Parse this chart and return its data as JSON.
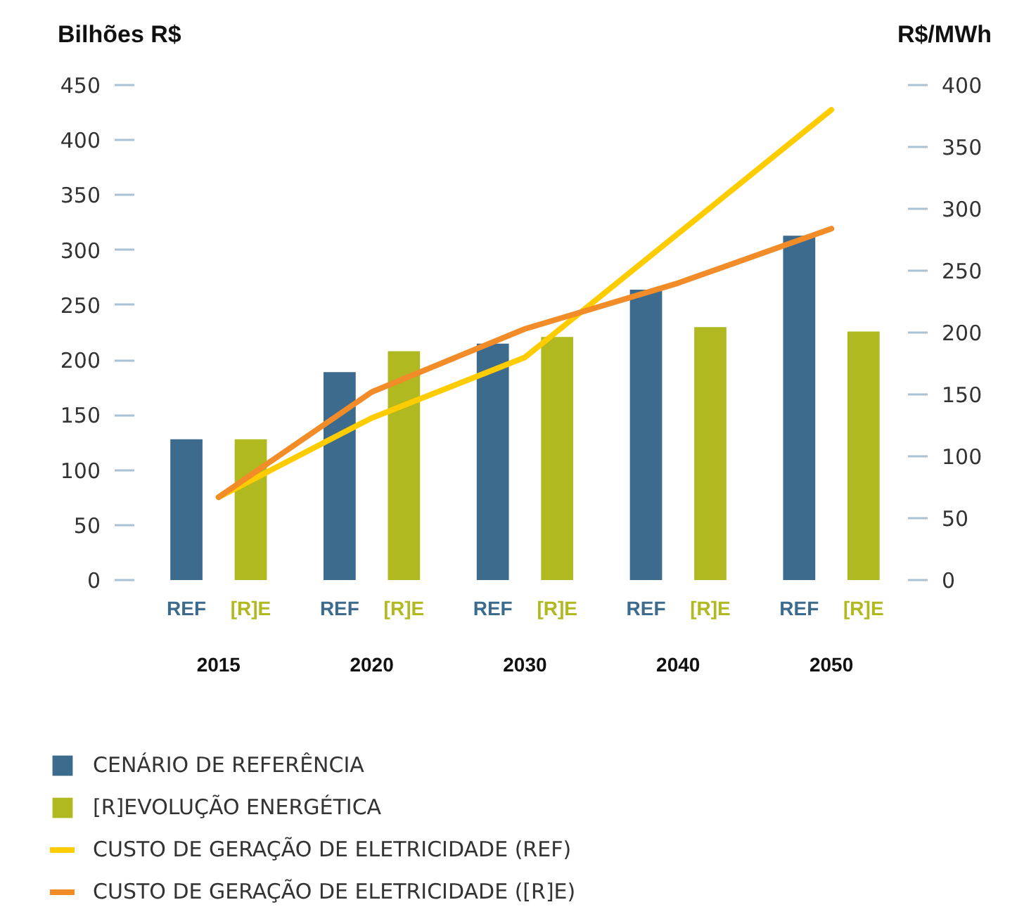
{
  "chart_data": {
    "type": "bar",
    "ylabel": "Bilhões R$",
    "y2label": "R$/MWh",
    "categories": [
      "2015",
      "2020",
      "2030",
      "2040",
      "2050"
    ],
    "series": [
      {
        "name": "CENÁRIO DE REFERÊNCIA",
        "color": "#3d6b8e",
        "values": [
          128,
          189,
          215,
          264,
          313
        ]
      },
      {
        "name": "[R]EVOLUÇÃO ENERGÉTICA",
        "color": "#b0b91f",
        "values": [
          128,
          208,
          221,
          230,
          226
        ]
      },
      {
        "name": "CUSTO DE GERAÇÃO DE ELETRICIDADE (REF)",
        "type": "line",
        "axis": "y2",
        "color": "#ffcc00",
        "values": [
          67,
          131,
          180,
          280,
          380
        ]
      },
      {
        "name": "CUSTO DE GERAÇÃO DE ELETRICIDADE ([R]E)",
        "type": "line",
        "axis": "y2",
        "color": "#f28c28",
        "values": [
          67,
          152,
          203,
          240,
          284
        ]
      }
    ],
    "ylim": [
      0,
      450
    ],
    "yticks": [
      0,
      50,
      100,
      150,
      200,
      250,
      300,
      350,
      400,
      450
    ],
    "y2lim": [
      0,
      400
    ],
    "y2ticks": [
      0,
      50,
      100,
      150,
      200,
      250,
      300,
      350,
      400
    ],
    "annotations": [
      "REF",
      "[R]E",
      "REF",
      "[R]E",
      "REF",
      "[R]E",
      "REF",
      "[R]E",
      "REF",
      "[R]E"
    ],
    "grid": false,
    "legend": "bottom",
    "line_style": "solid"
  }
}
